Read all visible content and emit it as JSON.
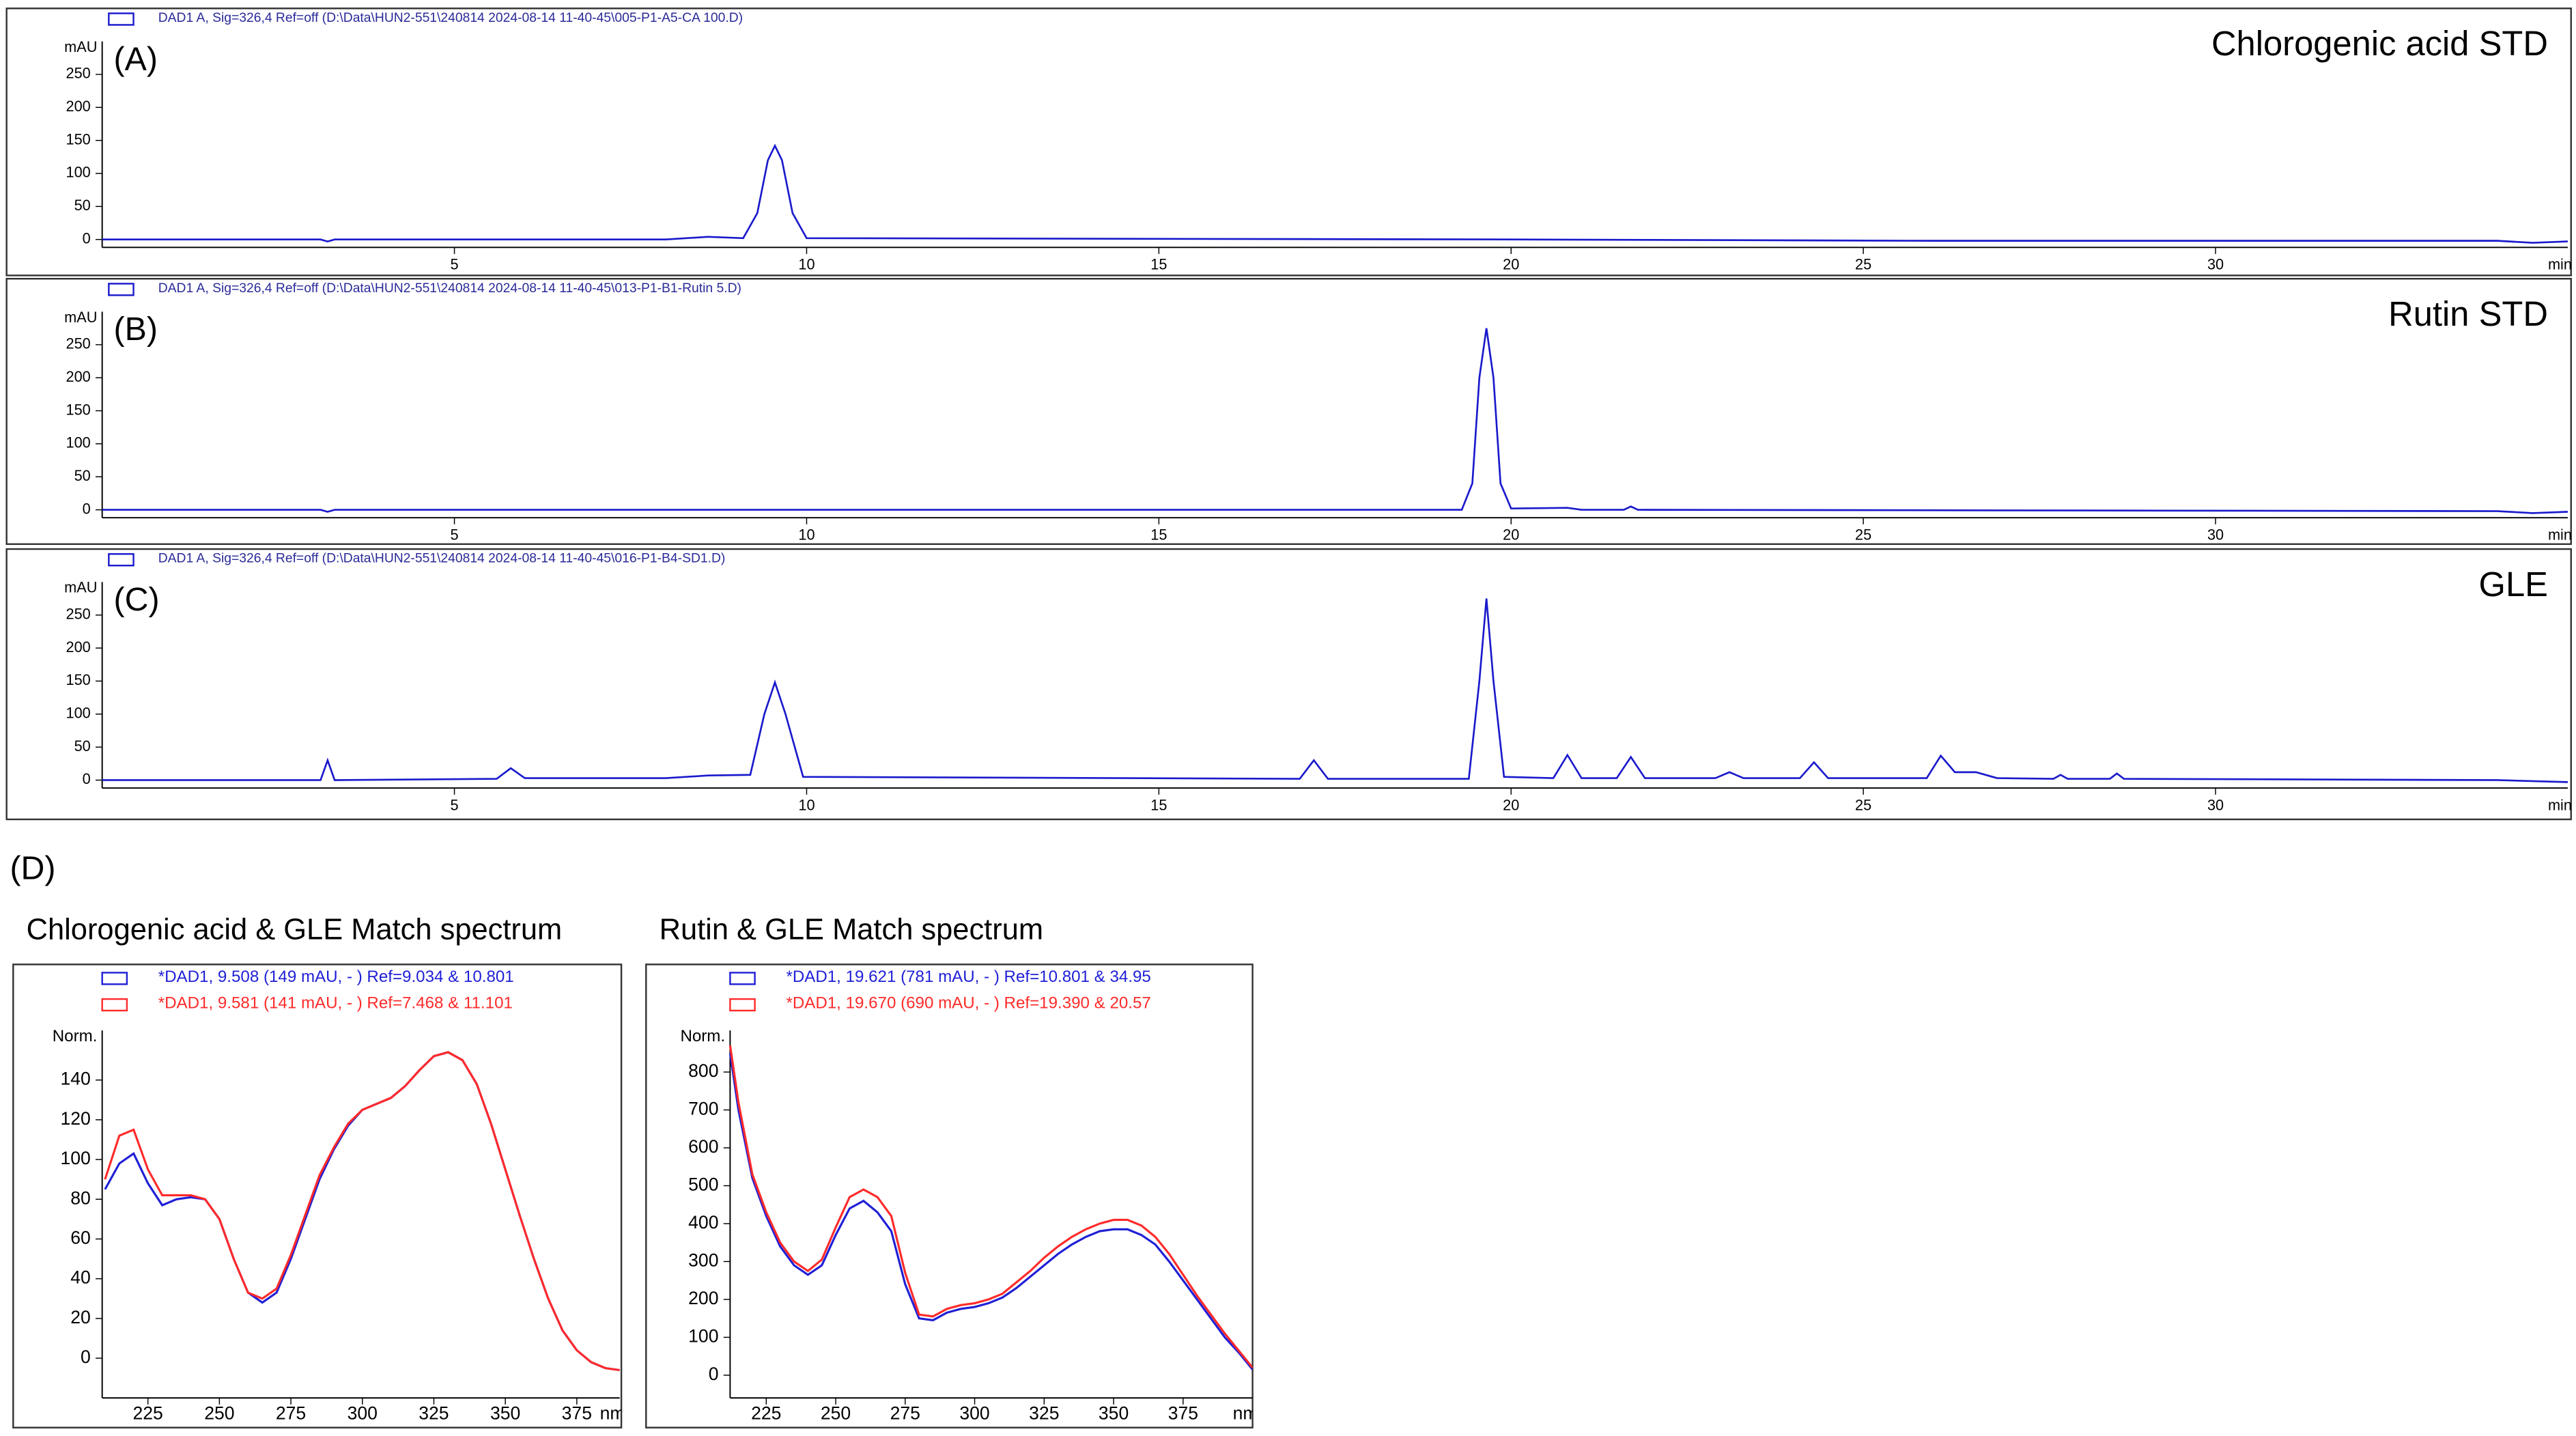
{
  "figure_label": "(D)",
  "chart_data": [
    {
      "type": "line",
      "panel_label": "(A)",
      "title": "Chlorogenic acid STD",
      "ylabel": "mAU",
      "xlabel": "min",
      "x": [
        0,
        3.1,
        3.2,
        3.3,
        8.0,
        8.6,
        9.1,
        9.3,
        9.45,
        9.55,
        9.65,
        9.8,
        10.0,
        20.0,
        26.0,
        34.0,
        34.5,
        35.0
      ],
      "series": [
        {
          "name": "DAD1 A, Sig=326,4 Ref=off (D:\\Data\\HUN2-551\\240814 2024-08-14 11-40-45\\005-P1-A5-CA 100.D)",
          "color": "#1a1acc",
          "values": [
            0,
            0,
            -3,
            0,
            0,
            4,
            2,
            40,
            120,
            142,
            120,
            40,
            2,
            0,
            -2,
            -2,
            -5,
            -3
          ]
        }
      ],
      "xlim": [
        0,
        35
      ],
      "ylim": [
        -12,
        300
      ],
      "xticks": [
        5,
        10,
        15,
        20,
        25,
        30
      ],
      "yticks": [
        0,
        50,
        100,
        150,
        200,
        250
      ]
    },
    {
      "type": "line",
      "panel_label": "(B)",
      "title": "Rutin STD",
      "ylabel": "mAU",
      "xlabel": "min",
      "x": [
        0,
        3.1,
        3.2,
        3.3,
        19.3,
        19.45,
        19.55,
        19.65,
        19.75,
        19.85,
        20.0,
        20.8,
        21.0,
        21.6,
        21.7,
        21.8,
        34.0,
        34.5,
        35.0
      ],
      "series": [
        {
          "name": "DAD1 A, Sig=326,4 Ref=off (D:\\Data\\HUN2-551\\240814 2024-08-14 11-40-45\\013-P1-B1-Rutin 5.D)",
          "color": "#1a1acc",
          "values": [
            0,
            0,
            -3,
            0,
            0,
            40,
            200,
            275,
            200,
            40,
            2,
            3,
            0,
            0,
            5,
            0,
            -2,
            -5,
            -3
          ]
        }
      ],
      "xlim": [
        0,
        35
      ],
      "ylim": [
        -12,
        300
      ],
      "xticks": [
        5,
        10,
        15,
        20,
        25,
        30
      ],
      "yticks": [
        0,
        50,
        100,
        150,
        200,
        250
      ]
    },
    {
      "type": "line",
      "panel_label": "(C)",
      "title": "GLE",
      "ylabel": "mAU",
      "xlabel": "min",
      "x": [
        0,
        3.1,
        3.2,
        3.3,
        5.6,
        5.8,
        6.0,
        8.0,
        8.6,
        9.2,
        9.4,
        9.55,
        9.7,
        9.95,
        17.0,
        17.2,
        17.4,
        19.4,
        19.55,
        19.65,
        19.75,
        19.9,
        20.6,
        20.8,
        21.0,
        21.5,
        21.7,
        21.9,
        22.9,
        23.1,
        23.3,
        24.1,
        24.3,
        24.5,
        25.9,
        26.1,
        26.3,
        26.6,
        26.9,
        27.7,
        27.8,
        27.9,
        28.5,
        28.6,
        28.7,
        34.0,
        35.0
      ],
      "series": [
        {
          "name": "DAD1 A, Sig=326,4 Ref=off (D:\\Data\\HUN2-551\\240814 2024-08-14 11-40-45\\016-P1-B4-SD1.D)",
          "color": "#1a1acc",
          "values": [
            0,
            0,
            30,
            0,
            2,
            18,
            3,
            3,
            7,
            8,
            100,
            148,
            100,
            5,
            2,
            30,
            2,
            2,
            150,
            275,
            150,
            5,
            3,
            38,
            3,
            3,
            35,
            3,
            3,
            12,
            3,
            3,
            27,
            3,
            3,
            37,
            12,
            12,
            3,
            2,
            8,
            2,
            2,
            10,
            2,
            0,
            -3
          ]
        }
      ],
      "xlim": [
        0,
        35
      ],
      "ylim": [
        -12,
        300
      ],
      "xticks": [
        5,
        10,
        15,
        20,
        25,
        30
      ],
      "yticks": [
        0,
        50,
        100,
        150,
        200,
        250
      ]
    },
    {
      "type": "line",
      "title": "Chlorogenic acid & GLE Match spectrum",
      "ylabel": "Norm.",
      "xlabel": "nm",
      "x": [
        210,
        215,
        220,
        225,
        230,
        235,
        240,
        245,
        250,
        255,
        260,
        265,
        270,
        275,
        280,
        285,
        290,
        295,
        300,
        305,
        310,
        315,
        320,
        325,
        330,
        335,
        340,
        345,
        350,
        355,
        360,
        365,
        370,
        375,
        380,
        385,
        390
      ],
      "series": [
        {
          "name": "*DAD1, 9.508 (149 mAU, - ) Ref=9.034 & 10.801",
          "color": "#1f1fd6",
          "values": [
            85,
            98,
            103,
            88,
            77,
            80,
            81,
            80,
            70,
            50,
            33,
            28,
            33,
            50,
            70,
            90,
            105,
            117,
            125,
            128,
            131,
            137,
            145,
            152,
            154,
            150,
            138,
            118,
            95,
            72,
            50,
            30,
            14,
            4,
            -2,
            -5,
            -6
          ]
        },
        {
          "name": "*DAD1, 9.581 (141 mAU, - ) Ref=7.468 & 11.101",
          "color": "#ff2a2a",
          "values": [
            90,
            112,
            115,
            95,
            82,
            82,
            82,
            80,
            70,
            50,
            33,
            30,
            35,
            52,
            72,
            92,
            106,
            118,
            125,
            128,
            131,
            137,
            145,
            152,
            154,
            150,
            138,
            118,
            95,
            72,
            50,
            30,
            14,
            4,
            -2,
            -5,
            -6
          ]
        }
      ],
      "xlim": [
        209,
        390
      ],
      "ylim": [
        -20,
        165
      ],
      "xticks": [
        225,
        250,
        275,
        300,
        325,
        350,
        375
      ],
      "yticks": [
        0,
        20,
        40,
        60,
        80,
        100,
        120,
        140
      ]
    },
    {
      "type": "line",
      "title": "Rutin & GLE Match spectrum",
      "ylabel": "Norm.",
      "xlabel": "nm",
      "x": [
        212,
        215,
        220,
        225,
        230,
        235,
        240,
        245,
        250,
        255,
        260,
        265,
        270,
        275,
        280,
        285,
        290,
        295,
        300,
        305,
        310,
        315,
        320,
        325,
        330,
        335,
        340,
        345,
        350,
        355,
        360,
        365,
        370,
        375,
        380,
        385,
        390,
        395,
        400
      ],
      "series": [
        {
          "name": "*DAD1, 19.621 (781 mAU, - ) Ref=10.801 & 34.95",
          "color": "#1f1fd6",
          "values": [
            850,
            700,
            520,
            420,
            340,
            290,
            265,
            290,
            370,
            440,
            460,
            430,
            380,
            240,
            150,
            145,
            165,
            175,
            180,
            190,
            205,
            230,
            260,
            290,
            320,
            345,
            365,
            380,
            385,
            385,
            370,
            345,
            300,
            250,
            200,
            150,
            100,
            60,
            15
          ]
        },
        {
          "name": "*DAD1, 19.670 (690 mAU, - ) Ref=19.390 & 20.57",
          "color": "#ff2a2a",
          "values": [
            870,
            720,
            530,
            430,
            350,
            300,
            275,
            305,
            390,
            470,
            490,
            470,
            420,
            270,
            160,
            155,
            175,
            185,
            190,
            200,
            215,
            245,
            275,
            310,
            340,
            365,
            385,
            400,
            410,
            410,
            395,
            365,
            320,
            265,
            210,
            160,
            110,
            65,
            20
          ]
        }
      ],
      "xlim": [
        212,
        400
      ],
      "ylim": [
        -60,
        910
      ],
      "xticks": [
        225,
        250,
        275,
        300,
        325,
        350,
        375
      ],
      "yticks": [
        0,
        100,
        200,
        300,
        400,
        500,
        600,
        700,
        800
      ]
    }
  ]
}
